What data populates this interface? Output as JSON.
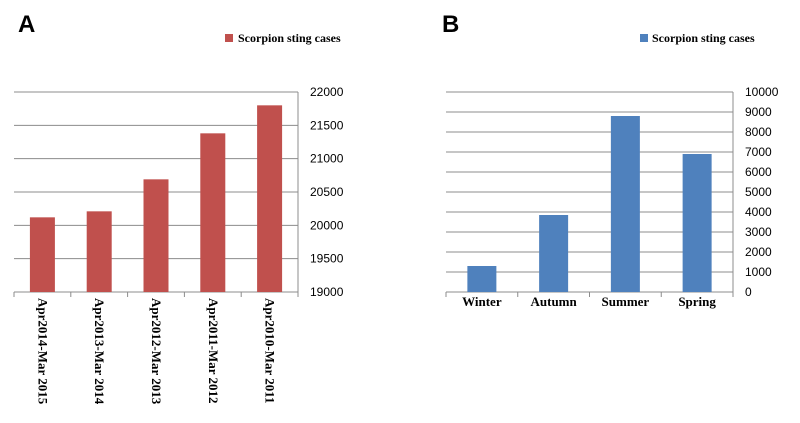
{
  "chart_data": [
    {
      "panel": "A",
      "type": "bar",
      "legend": "Scorpion sting cases",
      "legend_position": "top-right",
      "color": "#c0504d",
      "categories": [
        "Apr2014-Mar 2015",
        "Apr2013-Mar 2014",
        "Apr2012-Mar 2013",
        "Apr2011-Mar 2012",
        "Apr2010-Mar 2011"
      ],
      "values": [
        20120,
        20210,
        20690,
        21380,
        21800
      ],
      "ylim": [
        19000,
        22000
      ],
      "yticks": [
        "19000",
        "19500",
        "20000",
        "20500",
        "21000",
        "21500",
        "22000"
      ],
      "ytick_step": 500,
      "y_axis_side": "right",
      "grid": true
    },
    {
      "panel": "B",
      "type": "bar",
      "legend": "Scorpion sting cases",
      "legend_position": "top-right",
      "color": "#4f81bd",
      "categories": [
        "Winter",
        "Autumn",
        "Summer",
        "Spring"
      ],
      "values": [
        1300,
        3850,
        8800,
        6900
      ],
      "ylim": [
        0,
        10000
      ],
      "yticks": [
        "0",
        "1000",
        "2000",
        "3000",
        "4000",
        "5000",
        "6000",
        "7000",
        "8000",
        "9000",
        "10000"
      ],
      "ytick_step": 1000,
      "y_axis_side": "right",
      "grid": true
    }
  ]
}
